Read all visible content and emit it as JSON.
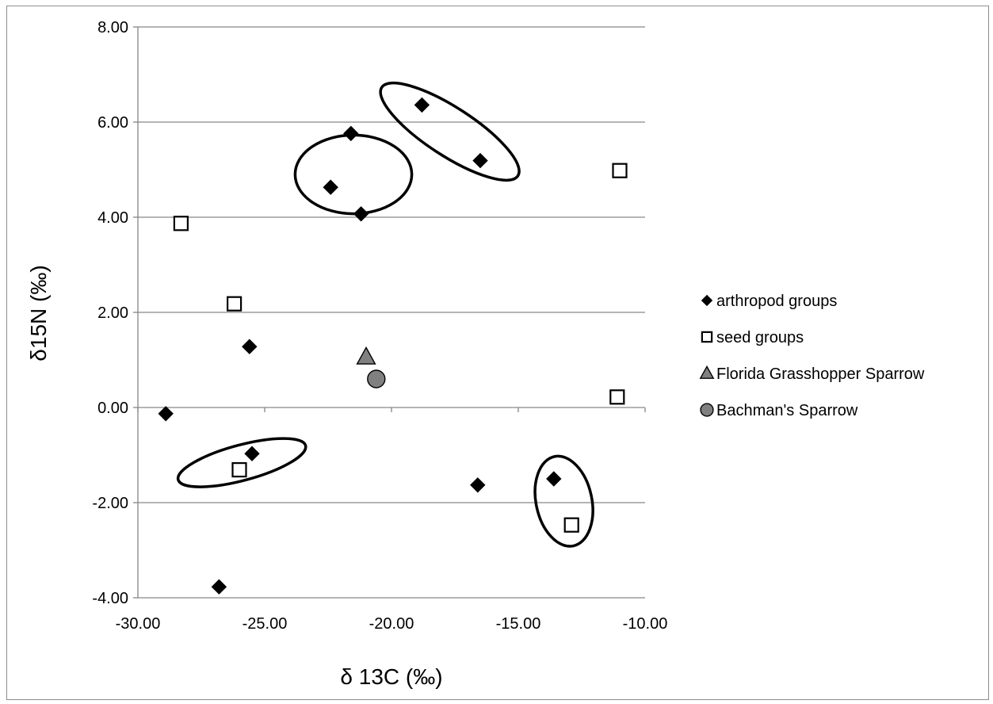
{
  "chart_data": {
    "type": "scatter",
    "title": "",
    "xlabel": "δ 13C (‰)",
    "ylabel": "δ15N (‰)",
    "xlim": [
      -30,
      -10
    ],
    "ylim": [
      -4,
      8
    ],
    "x_ticks": [
      -30,
      -25,
      -20,
      -15,
      -10
    ],
    "y_ticks": [
      -4,
      -2,
      0,
      2,
      4,
      6,
      8
    ],
    "x_tick_labels": [
      "-30.00",
      "-25.00",
      "-20.00",
      "-15.00",
      "-10.00"
    ],
    "y_tick_labels": [
      "-4.00",
      "-2.00",
      "0.00",
      "2.00",
      "4.00",
      "6.00",
      "8.00"
    ],
    "grid": "horizontal major gridlines",
    "legend_position": "right",
    "series": [
      {
        "name": "arthropod groups",
        "marker": "diamond",
        "color": "#000000",
        "points": [
          [
            -28.9,
            -0.13
          ],
          [
            -26.8,
            -3.77
          ],
          [
            -25.5,
            -0.97
          ],
          [
            -25.6,
            1.28
          ],
          [
            -22.4,
            4.63
          ],
          [
            -21.6,
            5.76
          ],
          [
            -21.2,
            4.07
          ],
          [
            -18.8,
            6.36
          ],
          [
            -16.5,
            5.19
          ],
          [
            -16.6,
            -1.63
          ],
          [
            -13.6,
            -1.5
          ]
        ]
      },
      {
        "name": "seed groups",
        "marker": "square-open",
        "color": "#000000",
        "points": [
          [
            -28.3,
            3.87
          ],
          [
            -26.2,
            2.18
          ],
          [
            -26.0,
            -1.31
          ],
          [
            -12.9,
            -2.47
          ],
          [
            -11.0,
            4.98
          ],
          [
            -11.1,
            0.22
          ]
        ]
      },
      {
        "name": "Florida Grasshopper Sparrow",
        "marker": "triangle",
        "color": "#808080",
        "points": [
          [
            -21.0,
            1.06
          ]
        ]
      },
      {
        "name": "Bachman's Sparrow",
        "marker": "circle",
        "color": "#808080",
        "points": [
          [
            -20.6,
            0.6
          ]
        ]
      }
    ],
    "annotations": [
      {
        "shape": "ellipse",
        "cx": -21.5,
        "cy": 4.9,
        "rx": 2.3,
        "ry": 1.55,
        "rotate": 0
      },
      {
        "shape": "ellipse",
        "cx": -17.7,
        "cy": 5.8,
        "rx": 3.2,
        "ry": 0.95,
        "rotate": 33
      },
      {
        "shape": "ellipse",
        "cx": -25.9,
        "cy": -1.16,
        "rx": 2.6,
        "ry": 0.7,
        "rotate": -15
      },
      {
        "shape": "ellipse",
        "cx": -13.2,
        "cy": -1.97,
        "rx": 1.8,
        "ry": 1.1,
        "rotate": 78
      }
    ]
  }
}
